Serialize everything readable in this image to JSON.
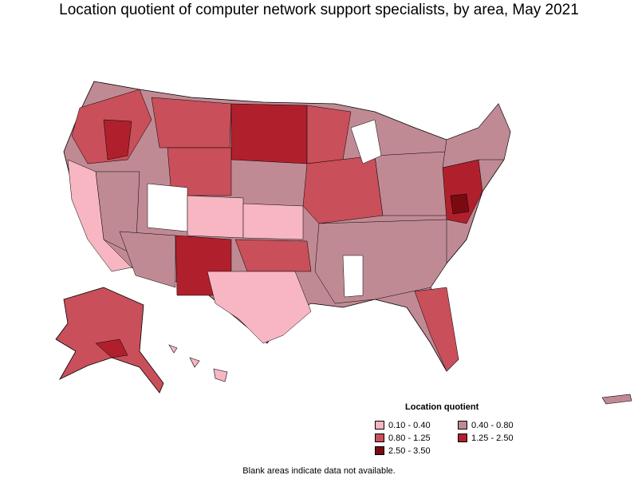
{
  "title": "Location quotient of computer network support specialists, by area, May 2021",
  "legend": {
    "title": "Location quotient",
    "items": [
      {
        "label": "0.10 - 0.40",
        "color": "#f7b6c2"
      },
      {
        "label": "0.40 - 0.80",
        "color": "#c08a94"
      },
      {
        "label": "0.80 - 1.25",
        "color": "#c94f5a"
      },
      {
        "label": "1.25 - 2.50",
        "color": "#b0202c"
      },
      {
        "label": "2.50 - 3.50",
        "color": "#7a0a12"
      }
    ]
  },
  "note": "Blank areas indicate data not available.",
  "colors": {
    "no_data": "#ffffff",
    "border": "#000000",
    "low": "#f7b6c2",
    "mid_low": "#c08a94",
    "mid": "#c94f5a",
    "high": "#b0202c",
    "very_high": "#7a0a12"
  }
}
